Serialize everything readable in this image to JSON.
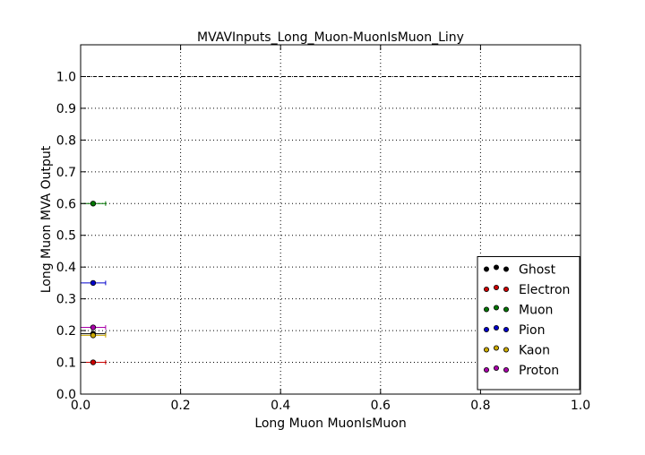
{
  "chart_data": {
    "type": "scatter",
    "title": "MVAVInputs_Long_Muon-MuonIsMuon_Liny",
    "xlabel": "Long Muon MuonIsMuon",
    "ylabel": "Long Muon MVA Output",
    "xlim": [
      0.0,
      1.0
    ],
    "ylim": [
      0.0,
      1.1
    ],
    "xticks": [
      0.0,
      0.2,
      0.4,
      0.6,
      0.8,
      1.0
    ],
    "xtick_labels": [
      "0.0",
      "0.2",
      "0.4",
      "0.6",
      "0.8",
      "1.0"
    ],
    "yticks": [
      0.0,
      0.1,
      0.2,
      0.3,
      0.4,
      0.5,
      0.6,
      0.7,
      0.8,
      0.9,
      1.0
    ],
    "ytick_labels": [
      "0.0",
      "0.1",
      "0.2",
      "0.3",
      "0.4",
      "0.5",
      "0.6",
      "0.7",
      "0.8",
      "0.9",
      "1.0"
    ],
    "grid": true,
    "reference_line_y": 1.0,
    "legend_position": "lower-right",
    "series": [
      {
        "name": "Ghost",
        "color": "#000000",
        "x": 0.025,
        "xerr": 0.025,
        "y": 0.19
      },
      {
        "name": "Electron",
        "color": "#cc0000",
        "x": 0.025,
        "xerr": 0.025,
        "y": 0.1
      },
      {
        "name": "Muon",
        "color": "#007700",
        "x": 0.025,
        "xerr": 0.025,
        "y": 0.6
      },
      {
        "name": "Pion",
        "color": "#0000cc",
        "x": 0.025,
        "xerr": 0.025,
        "y": 0.35
      },
      {
        "name": "Kaon",
        "color": "#ccaa00",
        "x": 0.025,
        "xerr": 0.025,
        "y": 0.185
      },
      {
        "name": "Proton",
        "color": "#aa00aa",
        "x": 0.025,
        "xerr": 0.025,
        "y": 0.21
      }
    ]
  }
}
